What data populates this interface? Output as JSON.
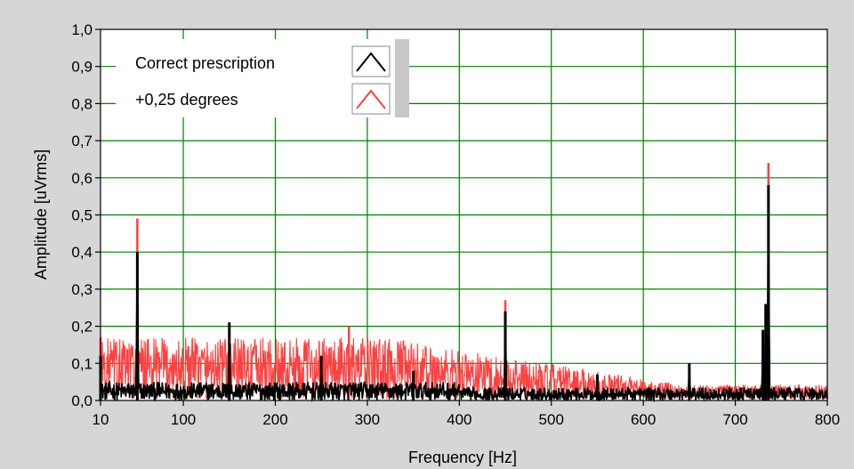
{
  "chart_data": {
    "type": "line",
    "title": "",
    "xlabel": "Frequency [Hz]",
    "ylabel": "Amplitude [uVrms]",
    "xlim": [
      10,
      800
    ],
    "ylim": [
      0.0,
      1.0
    ],
    "x_ticks": [
      10,
      100,
      200,
      300,
      400,
      500,
      600,
      700,
      800
    ],
    "x_tick_labels": [
      "10",
      "100",
      "200",
      "300",
      "400",
      "500",
      "600",
      "700",
      "800"
    ],
    "y_ticks": [
      0.0,
      0.1,
      0.2,
      0.3,
      0.4,
      0.5,
      0.6,
      0.7,
      0.8,
      0.9,
      1.0
    ],
    "y_tick_labels": [
      "0,0",
      "0,1",
      "0,2",
      "0,3",
      "0,4",
      "0,5",
      "0,6",
      "0,7",
      "0,8",
      "0,9",
      "1,0"
    ],
    "grid": true,
    "legend_position": "top-left",
    "background_color": "#ffffff",
    "grid_color": "#008000",
    "series": [
      {
        "name": "Correct prescription",
        "color": "#000000",
        "baseline_range": [
          0.0,
          0.05
        ],
        "peaks": [
          {
            "x": 10,
            "y": 0.12
          },
          {
            "x": 50,
            "y": 0.4
          },
          {
            "x": 150,
            "y": 0.21
          },
          {
            "x": 250,
            "y": 0.12
          },
          {
            "x": 350,
            "y": 0.08
          },
          {
            "x": 450,
            "y": 0.24
          },
          {
            "x": 550,
            "y": 0.07
          },
          {
            "x": 650,
            "y": 0.1
          },
          {
            "x": 730,
            "y": 0.19
          },
          {
            "x": 733,
            "y": 0.26
          },
          {
            "x": 736,
            "y": 0.58
          }
        ]
      },
      {
        "name": "+0,25 degrees",
        "color": "#ff4040",
        "baseline_range": [
          0.02,
          0.17
        ],
        "peaks": [
          {
            "x": 10,
            "y": 0.17
          },
          {
            "x": 50,
            "y": 0.49
          },
          {
            "x": 150,
            "y": 0.21
          },
          {
            "x": 280,
            "y": 0.2
          },
          {
            "x": 450,
            "y": 0.27
          },
          {
            "x": 736,
            "y": 0.64
          }
        ]
      }
    ]
  }
}
